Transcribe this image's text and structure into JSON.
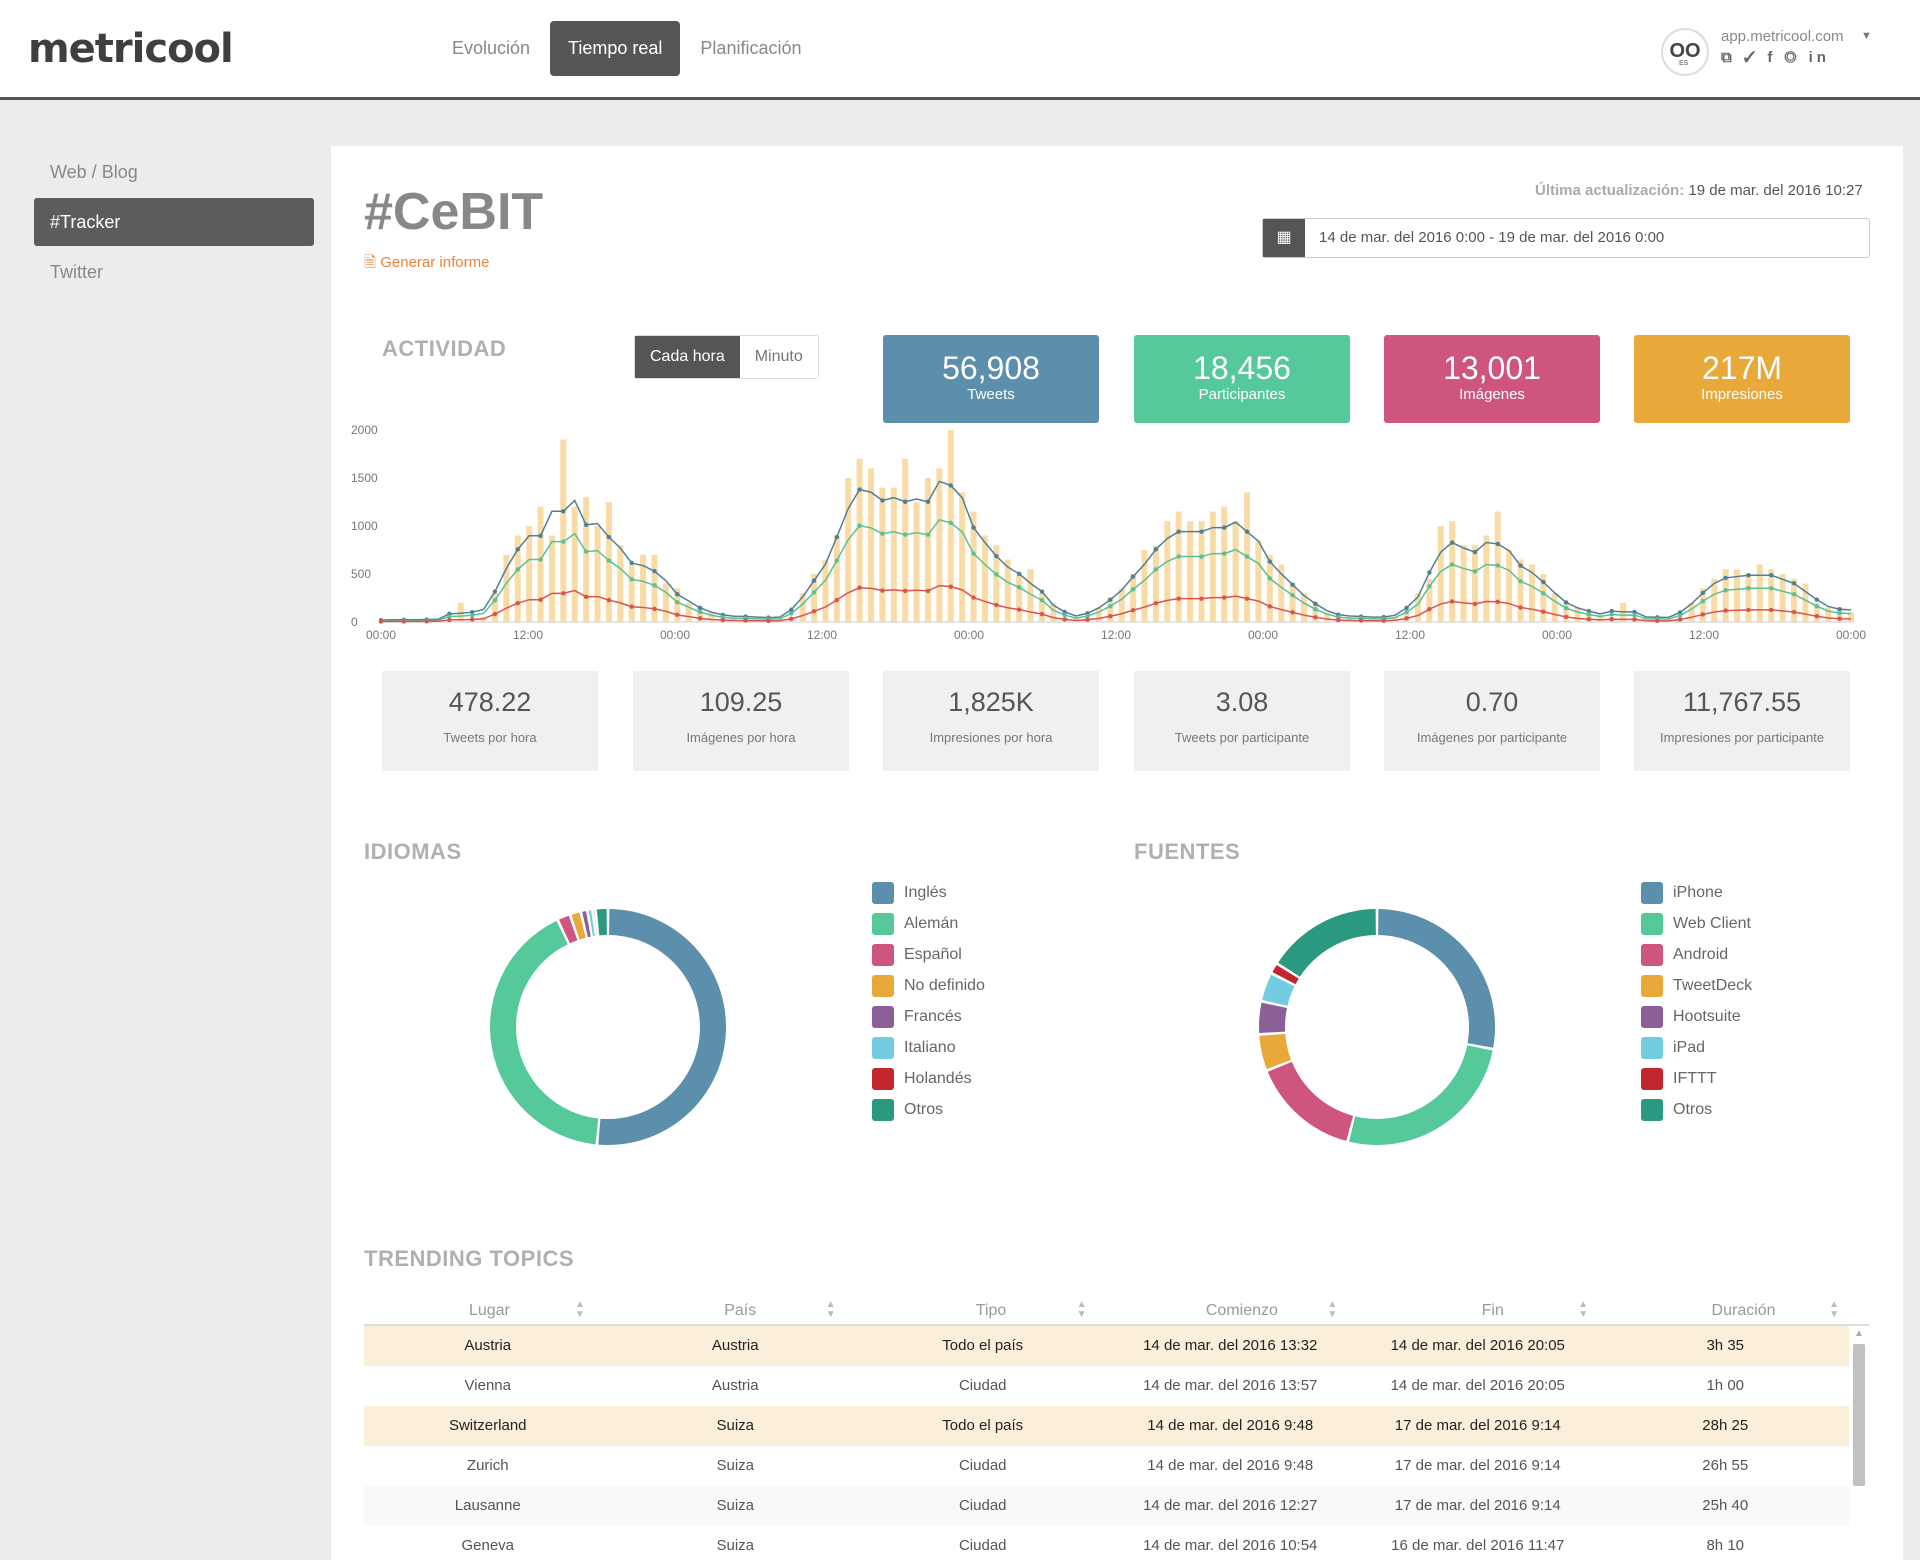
{
  "header": {
    "logo": "metricool",
    "nav": [
      "Evolución",
      "Tiempo real",
      "Planificación"
    ],
    "account": {
      "name": "app.metricool.com",
      "avatar_text": "OO",
      "avatar_sub": "ES",
      "socials": "⧉ ✓ f ◎ in"
    }
  },
  "sidebar": {
    "items": [
      "Web / Blog",
      "#Tracker",
      "Twitter"
    ]
  },
  "main": {
    "title": "#CeBIT",
    "report_link": "Generar informe",
    "last_update_label": "Última actualización:",
    "last_update_value": "19 de mar. del 2016 10:27",
    "date_range": "14 de mar. del 2016 0:00 - 19 de mar. del 2016 0:00",
    "activity_title": "ACTIVIDAD",
    "toggle": [
      "Cada hora",
      "Minuto"
    ],
    "kpis": [
      {
        "value": "56,908",
        "label": "Tweets",
        "color": "#5b8fab"
      },
      {
        "value": "18,456",
        "label": "Participantes",
        "color": "#55c99a"
      },
      {
        "value": "13,001",
        "label": "Imágenes",
        "color": "#cf5581"
      },
      {
        "value": "217M",
        "label": "Impresiones",
        "color": "#e9a93a"
      }
    ],
    "stats": [
      {
        "value": "478.22",
        "label": "Tweets por hora"
      },
      {
        "value": "109.25",
        "label": "Imágenes por hora"
      },
      {
        "value": "1,825K",
        "label": "Impresiones por hora"
      },
      {
        "value": "3.08",
        "label": "Tweets por participante"
      },
      {
        "value": "0.70",
        "label": "Imágenes por participante"
      },
      {
        "value": "11,767.55",
        "label": "Impresiones por participante"
      }
    ],
    "languages_title": "IDIOMAS",
    "sources_title": "FUENTES",
    "trending_title": "TRENDING TOPICS"
  },
  "chart_data": [
    {
      "type": "bar",
      "title": "",
      "note": "bars = impresiones (scaled), lines = tweets / participantes / imágenes",
      "ylim": [
        0,
        2000
      ],
      "yticks": [
        "2000",
        "1500",
        "1000",
        "500",
        "0"
      ],
      "xticks": [
        "00:00",
        "12:00",
        "00:00",
        "12:00",
        "00:00",
        "12:00",
        "00:00",
        "12:00",
        "00:00",
        "12:00",
        "00:00"
      ],
      "colors": {
        "bars": "#f9dba6",
        "tweets": "#4f7f98",
        "participantes": "#59c195",
        "imagenes": "#d9544f"
      },
      "bars": [
        0,
        0,
        10,
        0,
        0,
        20,
        10,
        200,
        40,
        50,
        300,
        700,
        900,
        1000,
        1200,
        900,
        1900,
        1200,
        1300,
        1000,
        1250,
        800,
        600,
        700,
        700,
        400,
        350,
        200,
        150,
        100,
        40,
        50,
        50,
        30,
        30,
        30,
        50,
        300,
        500,
        650,
        900,
        1500,
        1700,
        1600,
        1400,
        1400,
        1700,
        1250,
        1500,
        1600,
        2000,
        1350,
        1150,
        900,
        800,
        650,
        500,
        550,
        300,
        200,
        50,
        50,
        50,
        150,
        250,
        350,
        500,
        750,
        800,
        1050,
        1150,
        1050,
        1050,
        1150,
        1200,
        1050,
        1350,
        850,
        700,
        600,
        400,
        300,
        200,
        100,
        50,
        50,
        50,
        30,
        30,
        50,
        100,
        300,
        450,
        1000,
        1050,
        800,
        800,
        900,
        1150,
        750,
        650,
        600,
        500,
        300,
        200,
        150,
        100,
        80,
        50,
        200,
        50,
        50,
        20,
        30,
        50,
        200,
        350,
        450,
        550,
        550,
        500,
        600,
        550,
        500,
        450,
        400,
        200,
        150,
        150,
        100
      ]
    },
    {
      "type": "pie",
      "title": "IDIOMAS",
      "categories": [
        "Inglés",
        "Alemán",
        "Español",
        "No definido",
        "Francés",
        "Italiano",
        "Holandés",
        "Otros"
      ],
      "values": [
        51.5,
        41.5,
        1.8,
        1.5,
        0.9,
        0.7,
        0.4,
        1.7
      ],
      "colors": [
        "#5b8fab",
        "#55c99a",
        "#cf5581",
        "#e9a93a",
        "#8d5f98",
        "#72cde0",
        "#c0282d",
        "#2a9980"
      ]
    },
    {
      "type": "pie",
      "title": "FUENTES",
      "categories": [
        "iPhone",
        "Web Client",
        "Android",
        "TweetDeck",
        "Hootsuite",
        "iPad",
        "IFTTT",
        "Otros"
      ],
      "values": [
        28,
        26,
        15,
        5,
        4.5,
        4,
        1.5,
        16
      ],
      "colors": [
        "#5b8fab",
        "#55c99a",
        "#cf5581",
        "#e9a93a",
        "#8d5f98",
        "#72cde0",
        "#c0282d",
        "#2a9980"
      ]
    },
    {
      "type": "table",
      "title": "TRENDING TOPICS",
      "columns": [
        "Lugar",
        "País",
        "Tipo",
        "Comienzo",
        "Fin",
        "Duración"
      ],
      "rows": [
        [
          "Austria",
          "Austria",
          "Todo el país",
          "14 de mar. del 2016 13:32",
          "14 de mar. del 2016 20:05",
          "3h 35"
        ],
        [
          "Vienna",
          "Austria",
          "Ciudad",
          "14 de mar. del 2016 13:57",
          "14 de mar. del 2016 20:05",
          "1h 00"
        ],
        [
          "Switzerland",
          "Suiza",
          "Todo el país",
          "14 de mar. del 2016 9:48",
          "17 de mar. del 2016 9:14",
          "28h 25"
        ],
        [
          "Zurich",
          "Suiza",
          "Ciudad",
          "14 de mar. del 2016 9:48",
          "17 de mar. del 2016 9:14",
          "26h 55"
        ],
        [
          "Lausanne",
          "Suiza",
          "Ciudad",
          "14 de mar. del 2016 12:27",
          "17 de mar. del 2016 9:14",
          "25h 40"
        ],
        [
          "Geneva",
          "Suiza",
          "Ciudad",
          "14 de mar. del 2016 10:54",
          "16 de mar. del 2016 11:47",
          "8h 10"
        ]
      ],
      "highlight_rows": [
        0,
        2
      ]
    }
  ]
}
